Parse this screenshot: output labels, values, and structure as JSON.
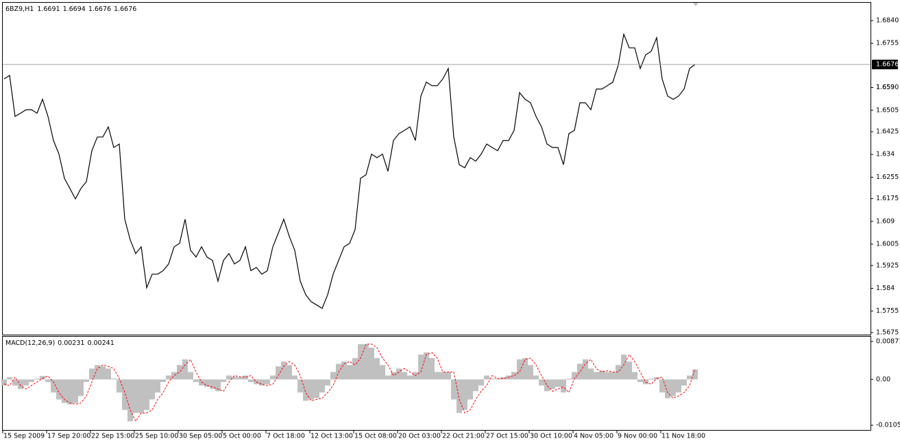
{
  "chart_data": [
    {
      "type": "line",
      "title": "6BZ9,H1",
      "ohlc": [
        1.6691,
        1.6694,
        1.6676,
        1.6676
      ],
      "color": "#000000",
      "last_price": 1.6676,
      "ylim": [
        1.5667,
        1.6904
      ],
      "yticks": [
        {
          "value": 1.684,
          "label": "1.6840"
        },
        1.6755,
        1.659,
        {
          "value": 1.659,
          "label": "1.6590"
        },
        1.6505,
        1.6425,
        1.634,
        1.6255,
        1.6175,
        1.609,
        1.6005,
        1.5925,
        1.584,
        1.5755,
        1.5675
      ],
      "values": [
        1.6622,
        1.6635,
        1.6482,
        1.6494,
        1.6507,
        1.6507,
        1.6494,
        1.6546,
        1.6482,
        1.6392,
        1.6341,
        1.6251,
        1.6213,
        1.6174,
        1.6213,
        1.6238,
        1.6354,
        1.6405,
        1.6405,
        1.6443,
        1.6366,
        1.6379,
        1.6098,
        1.6021,
        1.597,
        1.5995,
        1.5842,
        1.5893,
        1.5893,
        1.5906,
        1.5931,
        1.5995,
        1.6008,
        1.6098,
        1.5982,
        1.5957,
        1.5995,
        1.5957,
        1.5944,
        1.5867,
        1.5944,
        1.597,
        1.5931,
        1.5944,
        1.5995,
        1.5906,
        1.5918,
        1.5893,
        1.5906,
        1.5995,
        1.6046,
        1.6098,
        1.6034,
        1.5982,
        1.5867,
        1.5816,
        1.579,
        1.5778,
        1.5765,
        1.5816,
        1.5893,
        1.5944,
        1.5995,
        1.6008,
        1.6059,
        1.6251,
        1.6264,
        1.6341,
        1.6328,
        1.6341,
        1.6277,
        1.6392,
        1.6418,
        1.643,
        1.6443,
        1.6392,
        1.6558,
        1.661,
        1.6597,
        1.6597,
        1.6622,
        1.6661,
        1.6405,
        1.6302,
        1.629,
        1.6328,
        1.6315,
        1.6341,
        1.6379,
        1.6366,
        1.6354,
        1.6392,
        1.6392,
        1.643,
        1.6571,
        1.6546,
        1.6533,
        1.6482,
        1.6443,
        1.6379,
        1.6366,
        1.6366,
        1.6302,
        1.6418,
        1.643,
        1.6533,
        1.6533,
        1.6507,
        1.6584,
        1.6584,
        1.6597,
        1.661,
        1.6674,
        1.6789,
        1.6738,
        1.6738,
        1.6661,
        1.6712,
        1.6725,
        1.6776,
        1.6622,
        1.6558,
        1.6546,
        1.6558,
        1.6584,
        1.6661,
        1.6676
      ]
    },
    {
      "type": "macd",
      "title": "MACD(12,26,9)",
      "indicator_values": [
        0.00231,
        0.00241
      ],
      "ylim": [
        -0.0116,
        0.00965
      ],
      "yticks": [
        0.00871,
        {
          "value": 0,
          "label": "0.00"
        },
        -0.01051
      ],
      "categories": [
        "15 Sep 2009",
        null,
        null,
        null,
        null,
        null,
        null,
        null,
        "17 Sep 20:00",
        null,
        null,
        null,
        null,
        null,
        null,
        null,
        "22 Sep 15:00",
        null,
        null,
        null,
        null,
        null,
        null,
        null,
        "25 Sep 10:00",
        null,
        null,
        null,
        null,
        null,
        null,
        null,
        "30 Sep 05:00",
        null,
        null,
        null,
        null,
        null,
        null,
        null,
        "5 Oct 00:00",
        null,
        null,
        null,
        null,
        null,
        null,
        null,
        "7 Oct 18:00",
        null,
        null,
        null,
        null,
        null,
        null,
        null,
        "12 Oct 13:00",
        null,
        null,
        null,
        null,
        null,
        null,
        null,
        "15 Oct 08:00",
        null,
        null,
        null,
        null,
        null,
        null,
        null,
        "20 Oct 03:00",
        null,
        null,
        null,
        null,
        null,
        null,
        null,
        "22 Oct 21:00",
        null,
        null,
        null,
        null,
        null,
        null,
        null,
        "27 Oct 15:00",
        null,
        null,
        null,
        null,
        null,
        null,
        null,
        "30 Oct 10:00",
        null,
        null,
        null,
        null,
        null,
        null,
        null,
        "4 Nov 05:00",
        null,
        null,
        null,
        null,
        null,
        null,
        null,
        "9 Nov 00:00",
        null,
        null,
        null,
        null,
        null,
        null,
        null,
        "11 Nov 18:00",
        null,
        null,
        null,
        null,
        null,
        null
      ],
      "series": [
        {
          "style": "histogram",
          "color": "#c0c0c0",
          "values": [
            -0.0014,
            0.0005,
            -0.0014,
            -0.0022,
            -0.0014,
            -0.0006,
            0.0002,
            0.0008,
            -0.0006,
            -0.003,
            -0.0046,
            -0.0054,
            -0.0057,
            -0.0054,
            -0.0038,
            -0.0006,
            0.0025,
            0.0033,
            0.003,
            0.0025,
            0.0002,
            -0.003,
            -0.007,
            -0.0096,
            -0.0077,
            -0.0077,
            -0.007,
            -0.0046,
            -0.003,
            -0.0006,
            0.0009,
            0.0017,
            0.0033,
            0.0046,
            0.0017,
            -0.0006,
            -0.0014,
            -0.0017,
            -0.0022,
            -0.0027,
            -0.0006,
            0.0009,
            0.0006,
            0.0005,
            0.0009,
            -0.0006,
            -0.0011,
            -0.0014,
            -0.0011,
            0.0009,
            0.003,
            0.0041,
            0.0033,
            0.0009,
            -0.003,
            -0.0049,
            -0.0046,
            -0.0043,
            -0.003,
            -0.0014,
            0.0017,
            0.0036,
            0.0041,
            0.0033,
            0.0049,
            0.0081,
            0.0081,
            0.0073,
            0.0049,
            0.0033,
            0.0009,
            0.0017,
            0.0025,
            0.0017,
            0.0009,
            0.0017,
            0.0057,
            0.0062,
            0.0049,
            0.0017,
            0.0017,
            0.0017,
            -0.0046,
            -0.0077,
            -0.007,
            -0.0046,
            -0.0027,
            -0.0014,
            0.0009,
            0.0002,
            0.0002,
            0.0005,
            0.0009,
            0.0017,
            0.0046,
            0.0049,
            0.0033,
            0.0009,
            -0.0014,
            -0.0027,
            -0.0022,
            -0.0017,
            -0.003,
            0.0002,
            0.0017,
            0.0036,
            0.0046,
            0.0025,
            0.0017,
            0.002,
            0.0017,
            0.0017,
            0.0033,
            0.0057,
            0.0041,
            0.0017,
            -0.0006,
            -0.0011,
            0.0002,
            0.0005,
            -0.003,
            -0.0043,
            -0.0038,
            -0.003,
            -0.0014,
            0.0009,
            0.00231
          ]
        },
        {
          "style": "dashed",
          "color": "#ff0000",
          "values": [
            -0.001,
            -0.0014,
            0.0005,
            -0.0014,
            -0.0022,
            -0.0014,
            -0.0006,
            0.0002,
            0.0008,
            -0.0006,
            -0.003,
            -0.0046,
            -0.0054,
            -0.0057,
            -0.0054,
            -0.0038,
            -0.0006,
            0.0025,
            0.0033,
            0.003,
            0.0025,
            0.0002,
            -0.003,
            -0.007,
            -0.0096,
            -0.0077,
            -0.0077,
            -0.007,
            -0.0046,
            -0.003,
            -0.0006,
            0.0009,
            0.0017,
            0.0033,
            0.0046,
            0.0017,
            -0.0006,
            -0.0014,
            -0.0017,
            -0.0022,
            -0.0027,
            -0.0006,
            0.0009,
            0.0006,
            0.0005,
            0.0009,
            -0.0006,
            -0.0011,
            -0.0014,
            -0.0011,
            0.0009,
            0.003,
            0.0041,
            0.0033,
            0.0009,
            -0.003,
            -0.0049,
            -0.0046,
            -0.0043,
            -0.003,
            -0.0014,
            0.0017,
            0.0036,
            0.0041,
            0.0033,
            0.0049,
            0.0081,
            0.0081,
            0.0073,
            0.0049,
            0.0033,
            0.0009,
            0.0017,
            0.0025,
            0.0017,
            0.0009,
            0.0017,
            0.0057,
            0.0062,
            0.0049,
            0.0017,
            0.0017,
            0.0017,
            -0.0046,
            -0.0077,
            -0.007,
            -0.0046,
            -0.0027,
            -0.0014,
            0.0009,
            0.0002,
            0.0002,
            0.0005,
            0.0009,
            0.0017,
            0.0046,
            0.0049,
            0.0033,
            0.0009,
            -0.0014,
            -0.0027,
            -0.0022,
            -0.0017,
            -0.003,
            0.0002,
            0.0017,
            0.0036,
            0.0046,
            0.0025,
            0.0017,
            0.002,
            0.0017,
            0.0017,
            0.0033,
            0.0057,
            0.0041,
            0.0017,
            -0.0006,
            -0.0011,
            0.0002,
            0.0005,
            -0.003,
            -0.0043,
            -0.0038,
            -0.003,
            -0.0014,
            0.00241
          ]
        }
      ]
    }
  ]
}
